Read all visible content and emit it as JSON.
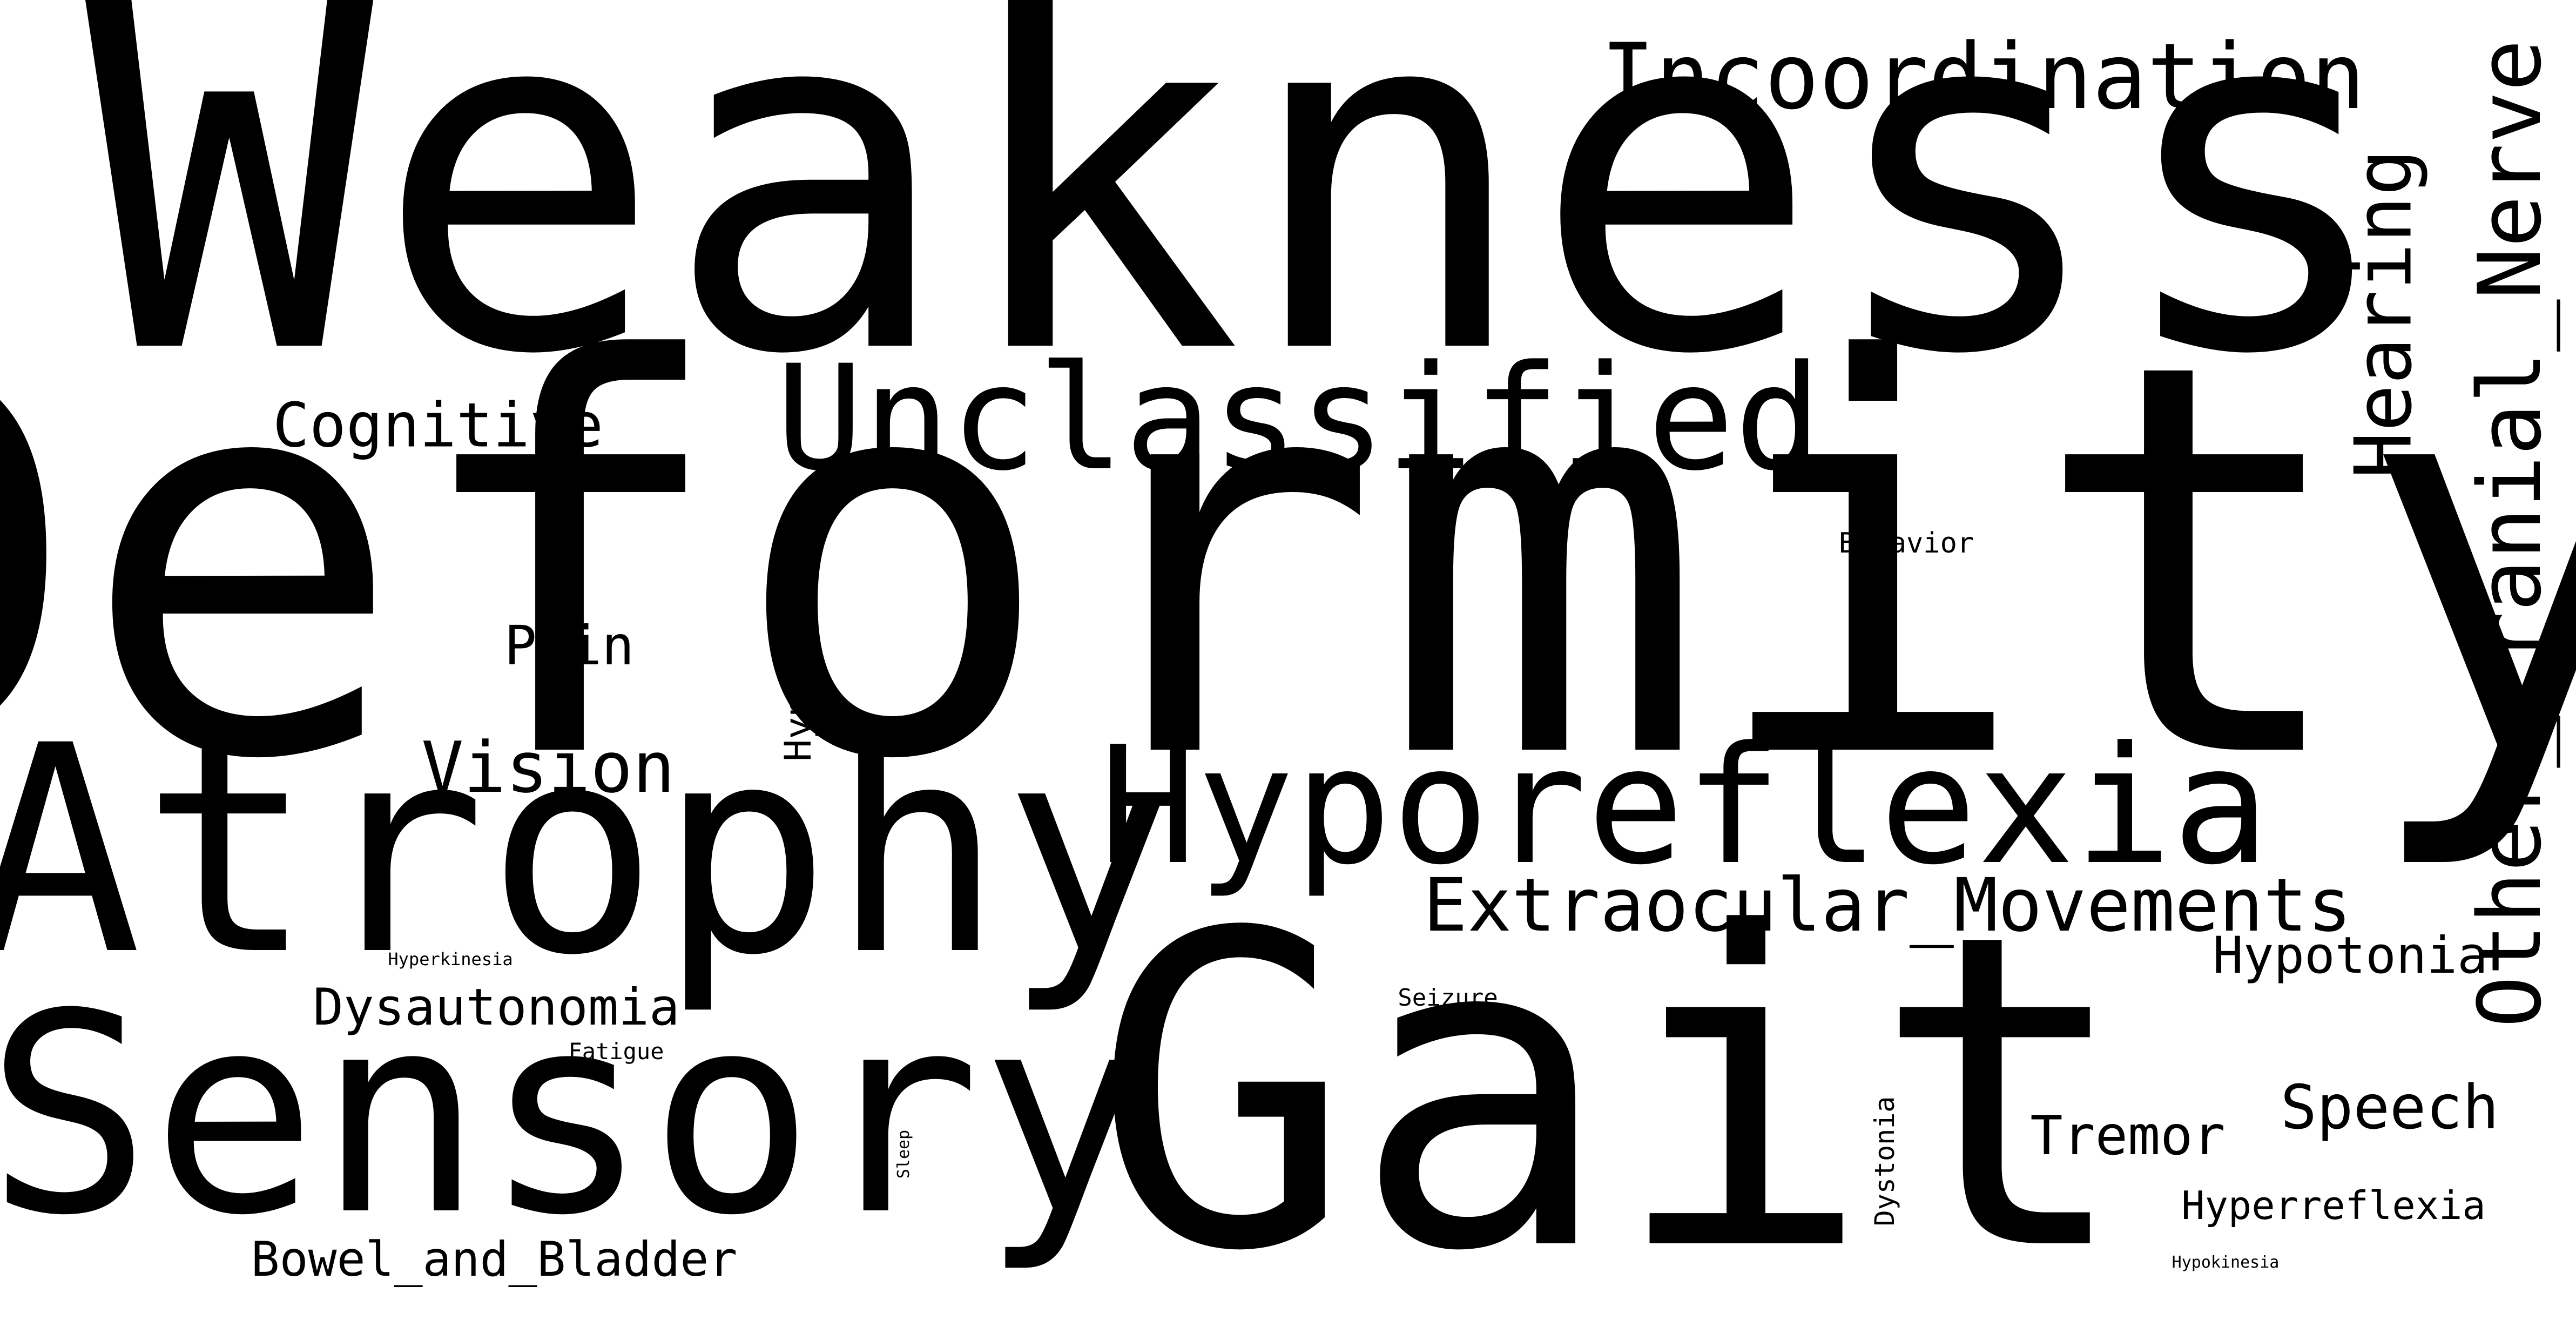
{
  "colors": {
    "background": "#ffffff",
    "text": "#000000"
  },
  "words": [
    {
      "text": "Weakness"
    },
    {
      "text": "Deformity"
    },
    {
      "text": "Gait"
    },
    {
      "text": "Atrophy"
    },
    {
      "text": "Sensory"
    },
    {
      "text": "Hyporeflexia"
    },
    {
      "text": "Unclassified"
    },
    {
      "text": "Incoordination"
    },
    {
      "text": "Other_Cranial_Nerve"
    },
    {
      "text": "Extraocular_Movements"
    },
    {
      "text": "Hearing"
    },
    {
      "text": "Cognitive"
    },
    {
      "text": "Vision"
    },
    {
      "text": "Dysautonomia"
    },
    {
      "text": "Bowel_and_Bladder"
    },
    {
      "text": "Speech"
    },
    {
      "text": "Hypotonia"
    },
    {
      "text": "Tremor"
    },
    {
      "text": "Pain"
    },
    {
      "text": "Hyperreflexia"
    },
    {
      "text": "Hypertonia"
    },
    {
      "text": "Behavior"
    },
    {
      "text": "Dystonia"
    },
    {
      "text": "Seizure"
    },
    {
      "text": "Fatigue"
    },
    {
      "text": "Hyperkinesia"
    },
    {
      "text": "Hypokinesia"
    },
    {
      "text": "Sleep"
    }
  ]
}
